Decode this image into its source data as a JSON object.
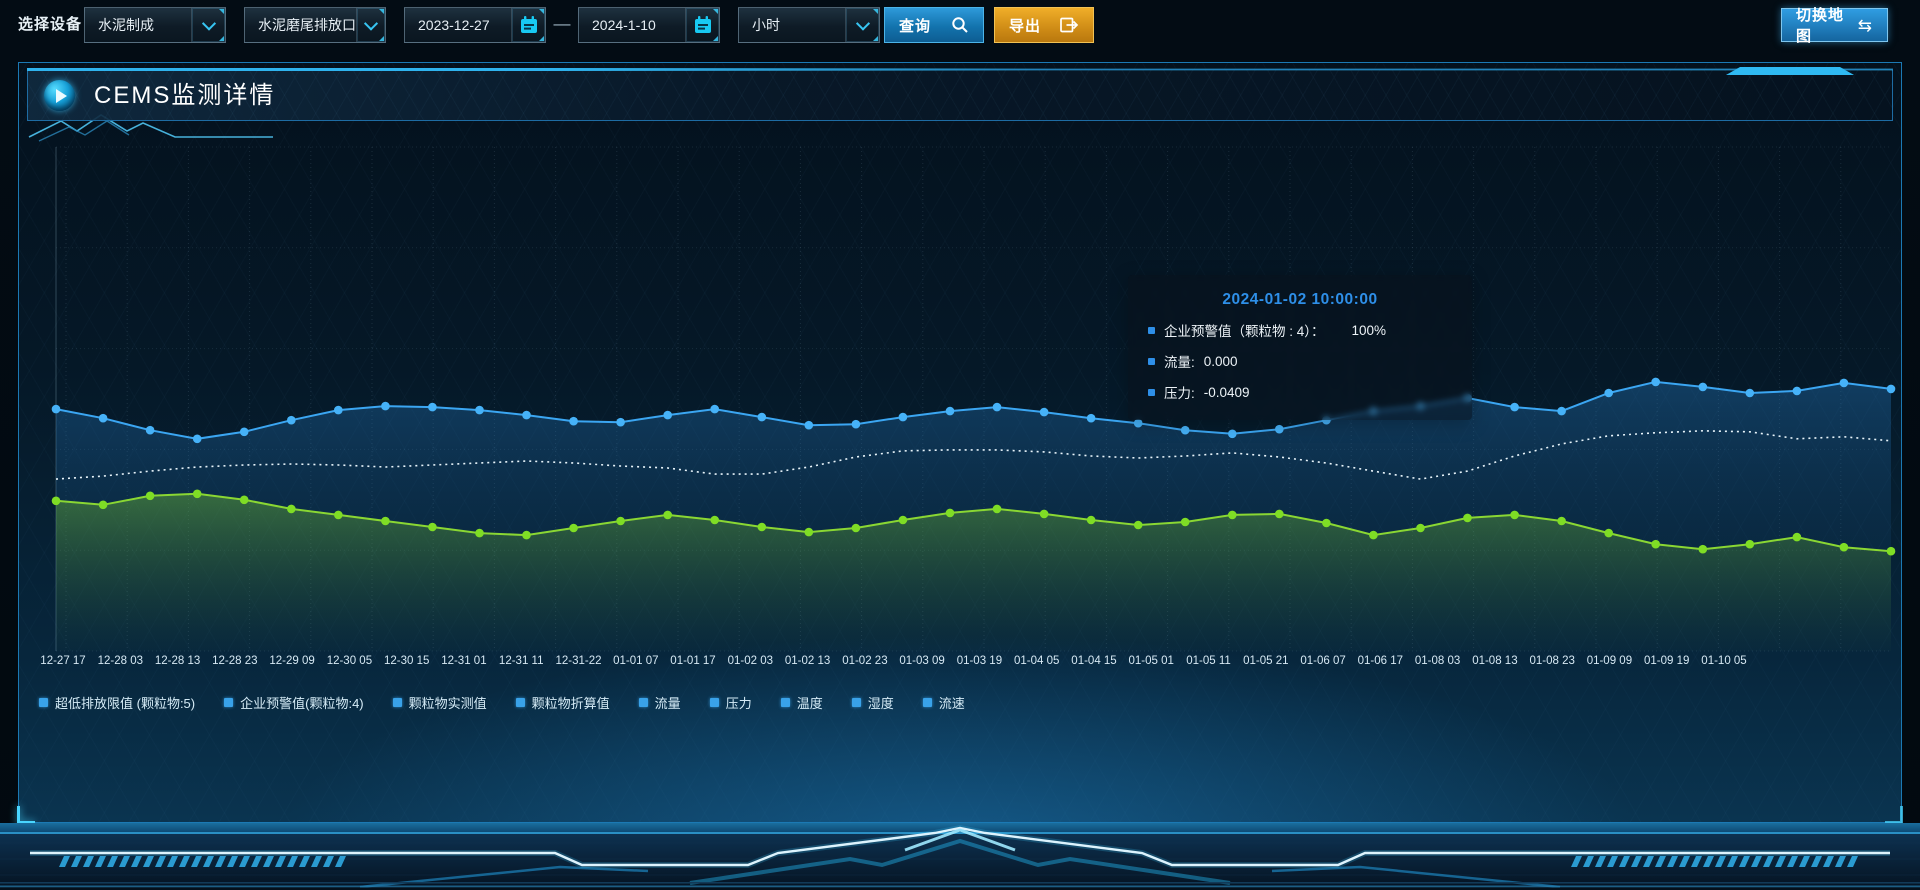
{
  "toolbar": {
    "device_label": "选择设备",
    "selects": [
      {
        "value": "水泥制成"
      },
      {
        "value": "水泥磨尾排放口"
      },
      {
        "value": "小时"
      }
    ],
    "date_start": "2023-12-27",
    "date_separator": "—",
    "date_end": "2024-1-10",
    "query_label": "查询",
    "export_label": "导出",
    "switch_map_label": "切换地图",
    "swap_icon_glyph": "⇆"
  },
  "panel": {
    "title": "CEMS监测详情"
  },
  "tooltip": {
    "title": "2024-01-02 10:00:00",
    "rows": [
      {
        "label": "企业预警值（颗粒物 : 4）：",
        "value": "100%"
      },
      {
        "label": "流量:",
        "value": "0.000"
      },
      {
        "label": "压力:",
        "value": "-0.0409"
      }
    ]
  },
  "legend": {
    "items": [
      "超低排放限值 (颗粒物:5)",
      "企业预警值(颗粒物:4)",
      "颗粒物实测值",
      "颗粒物折算值",
      "流量",
      "压力",
      "温度",
      "湿度",
      "流速"
    ]
  },
  "colors": {
    "accent_cyan": "#2fb9f2",
    "tooltip_title": "#2e8fe8",
    "legend_marker": "#39a2e9",
    "query_button": "#1373ad",
    "export_button": "#cf8c16",
    "axis_label": "#d7e9f4"
  },
  "chart_data": {
    "type": "line",
    "title": "CEMS监测详情",
    "xlabel": "",
    "ylabel": "",
    "y_axis_labels_visible": false,
    "grid": true,
    "legend_position": "bottom",
    "x_labels": [
      "12-27 17",
      "12-28 03",
      "12-28 13",
      "12-28 23",
      "12-29 09",
      "12-30 05",
      "12-30 15",
      "12-31 01",
      "12-31 11",
      "12-31-22",
      "01-01 07",
      "01-01 17",
      "01-02 03",
      "01-02 13",
      "01-02 23",
      "01-03 09",
      "01-03 19",
      "01-04 05",
      "01-04 15",
      "01-05 01",
      "01-05 11",
      "01-05 21",
      "01-06 07",
      "01-06 17",
      "01-08 03",
      "01-08 13",
      "01-08 23",
      "01-09 09",
      "01-09 19",
      "01-10 05"
    ],
    "highlighted_point": {
      "time": "2024-01-02 10:00:00",
      "企业预警值(颗粒物:4)": "100%",
      "流量": "0.000",
      "压力": "-0.0409"
    },
    "series": [
      {
        "name": "流量",
        "line": "solid",
        "color": "#3ba6f2",
        "marker_color": "#46b2f8",
        "markers": true,
        "area": true,
        "area_from": "rgba(40,130,205,0.34)",
        "area_to": "rgba(16,60,100,0.03)",
        "values_pct": [
          48.0,
          46.2,
          43.8,
          42.1,
          43.5,
          45.8,
          47.8,
          48.6,
          48.4,
          47.8,
          46.8,
          45.6,
          45.4,
          46.8,
          48.0,
          46.4,
          44.8,
          45.0,
          46.4,
          47.6,
          48.4,
          47.4,
          46.2,
          45.2,
          43.8,
          43.1,
          44.0,
          45.8,
          47.6,
          48.6,
          50.2,
          48.4,
          47.6,
          51.2,
          53.4,
          52.4,
          51.2,
          51.6,
          53.2,
          52.0
        ]
      },
      {
        "name": "企业预警值(颗粒物:4)",
        "line": "dotted",
        "color": "#e9f5fb",
        "markers": false,
        "area": false,
        "values_pct": [
          34.1,
          34.7,
          35.7,
          36.5,
          36.9,
          37.1,
          36.9,
          36.5,
          36.9,
          37.3,
          37.7,
          37.3,
          36.7,
          36.3,
          35.1,
          35.1,
          36.5,
          38.5,
          39.7,
          39.9,
          39.9,
          39.5,
          38.7,
          38.3,
          38.7,
          39.3,
          38.5,
          37.3,
          35.7,
          34.1,
          35.7,
          38.7,
          41.1,
          42.7,
          43.3,
          43.7,
          43.5,
          42.1,
          42.5,
          41.7
        ]
      },
      {
        "name": "压力",
        "line": "solid",
        "color": "#8ad733",
        "marker_color": "#7fdd25",
        "markers": true,
        "area": true,
        "area_from": "rgba(130,215,48,0.36)",
        "area_to": "rgba(80,140,40,0.02)",
        "values_pct": [
          29.8,
          29.0,
          30.8,
          31.2,
          30.0,
          28.2,
          27.0,
          25.8,
          24.6,
          23.4,
          23.0,
          24.4,
          25.8,
          27.0,
          26.0,
          24.6,
          23.6,
          24.4,
          26.0,
          27.4,
          28.2,
          27.2,
          26.0,
          25.0,
          25.6,
          27.0,
          27.2,
          25.4,
          23.0,
          24.4,
          26.4,
          27.0,
          25.8,
          23.4,
          21.2,
          20.2,
          21.2,
          22.6,
          20.6,
          19.8
        ]
      }
    ]
  }
}
